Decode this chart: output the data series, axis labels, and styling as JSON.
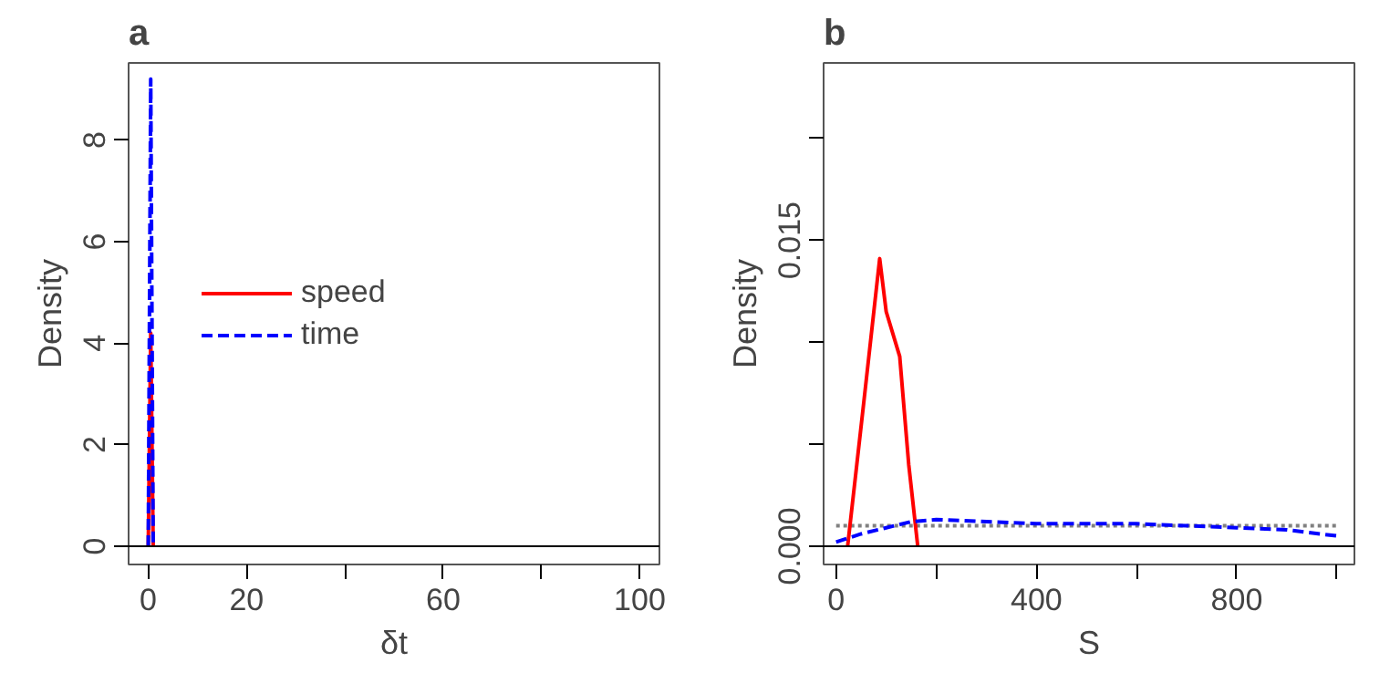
{
  "chart_data": [
    {
      "type": "line",
      "title": "a",
      "xlabel": "δt",
      "ylabel": "Density",
      "xlim": [
        -4,
        104
      ],
      "ylim": [
        -0.36,
        9.52
      ],
      "xticks": [
        0,
        20,
        {
          "value": 40,
          "label": null
        },
        60,
        {
          "value": 80,
          "label": null
        },
        100
      ],
      "yticks": [
        0,
        2,
        4,
        6,
        8
      ],
      "grid": false,
      "legend": "left",
      "marker": "none",
      "ref_lines": [
        {
          "axis": "y",
          "value": 0,
          "color": "#000000"
        }
      ],
      "series": [
        {
          "name": "speed",
          "color": "#ff0000",
          "line_style": "solid",
          "x": [
            0,
            0.5,
            1
          ],
          "values": [
            0,
            4.2,
            0
          ]
        },
        {
          "name": "time",
          "color": "#0000ff",
          "line_style": "dashed",
          "x": [
            0,
            0.5,
            1
          ],
          "values": [
            0,
            9.2,
            0
          ]
        }
      ]
    },
    {
      "type": "line",
      "title": "b",
      "xlabel": "S",
      "ylabel": "Density",
      "xlim": [
        -25,
        1035
      ],
      "ylim": [
        -0.0009,
        0.0237
      ],
      "xticks": [
        0,
        {
          "value": 200,
          "label": null
        },
        400,
        {
          "value": 600,
          "label": null
        },
        800,
        {
          "value": 1000,
          "label": null
        }
      ],
      "yticks": [
        {
          "value": 0,
          "label": "0.000"
        },
        {
          "value": 0.005,
          "label": null
        },
        {
          "value": 0.01,
          "label": null
        },
        0.015,
        {
          "value": 0.02,
          "label": null
        }
      ],
      "grid": false,
      "legend": false,
      "marker": "none",
      "ref_lines": [
        {
          "axis": "y",
          "value": 0,
          "color": "#000000"
        }
      ],
      "series": [
        {
          "color": "#808080",
          "line_style": "dotted",
          "x": [
            0,
            1000
          ],
          "values": [
            0.001,
            0.001
          ]
        },
        {
          "color": "#ff0000",
          "line_style": "solid",
          "x": [
            23,
            55,
            87,
            100,
            127,
            145,
            163
          ],
          "values": [
            0,
            0.007,
            0.0141,
            0.0115,
            0.0093,
            0.004,
            0
          ]
        },
        {
          "color": "#0000ff",
          "line_style": "dashed",
          "x": [
            0,
            50,
            100,
            150,
            200,
            300,
            400,
            500,
            600,
            700,
            800,
            900,
            1000
          ],
          "values": [
            0.0002,
            0.0006,
            0.0009,
            0.0012,
            0.0013,
            0.0012,
            0.0011,
            0.0011,
            0.0011,
            0.001,
            0.0009,
            0.0008,
            0.0005
          ]
        }
      ]
    }
  ]
}
